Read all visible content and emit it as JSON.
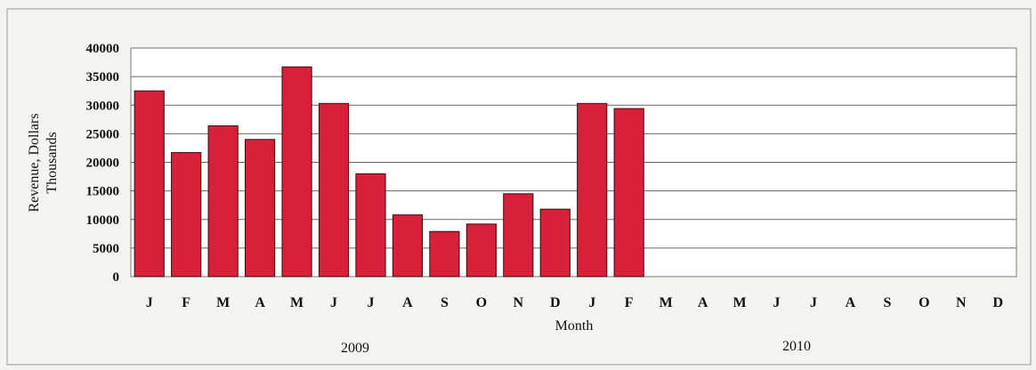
{
  "chart_data": {
    "type": "bar",
    "title": "",
    "xlabel": "Month",
    "ylabel": "Revenue, Dollars",
    "ylabel_sub": "Thousands",
    "ylim": [
      0,
      40000
    ],
    "yticks": [
      0,
      5000,
      10000,
      15000,
      20000,
      25000,
      30000,
      35000,
      40000
    ],
    "categories": [
      "J",
      "F",
      "M",
      "A",
      "M",
      "J",
      "J",
      "A",
      "S",
      "O",
      "N",
      "D",
      "J",
      "F",
      "M",
      "A",
      "M",
      "J",
      "J",
      "A",
      "S",
      "O",
      "N",
      "D"
    ],
    "year_labels": [
      "2009",
      "2010"
    ],
    "values": [
      32500,
      21700,
      26400,
      24000,
      36700,
      30300,
      18000,
      10800,
      7900,
      9200,
      14500,
      11800,
      30300,
      29400,
      null,
      null,
      null,
      null,
      null,
      null,
      null,
      null,
      null,
      null
    ],
    "grid": true,
    "bar_color": "#d9203a"
  }
}
